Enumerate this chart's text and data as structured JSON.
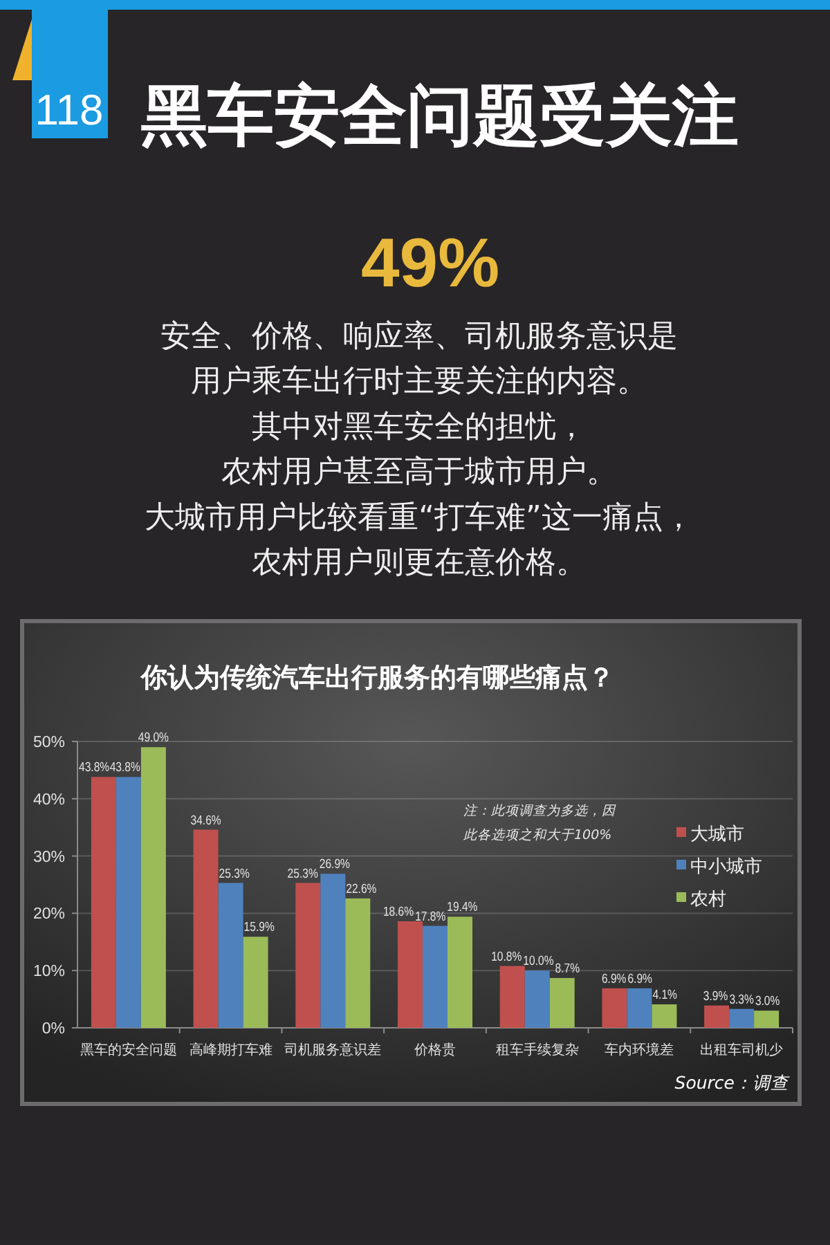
{
  "chart_data": {
    "type": "bar",
    "title": "你认为传统汽车出行服务的有哪些痛点？",
    "annotations": [
      "118",
      "黑车安全问题受关注",
      "49%",
      "安全、价格、响应率、司机服务意识是",
      "用户乘车出行时主要关注的内容。",
      "其中对黑车安全的担忧，",
      "农村用户甚至高于城市用户。",
      "大城市用户比较看重“打车难”这一痛点，",
      "农村用户则更在意价格。",
      "注：此项调查为多选，因此各选项之和大于100%",
      "Source：调查"
    ],
    "categories": [
      "黑车的安全问题",
      "高峰期打车难",
      "司机服务意识差",
      "价格贵",
      "租车手续复杂",
      "车内环境差",
      "出租车司机少"
    ],
    "series": [
      {
        "name": "大城市",
        "color": "#c0504d",
        "values": [
          43.8,
          34.6,
          25.3,
          18.6,
          10.8,
          6.9,
          3.9
        ],
        "value_labels": [
          "43.8%",
          "34.6%",
          "25.3%",
          "18.6%",
          "10.8%",
          "6.9%",
          "3.9%"
        ]
      },
      {
        "name": "中小城市",
        "color": "#4f81bd",
        "values": [
          43.8,
          25.3,
          26.9,
          17.8,
          10.0,
          6.9,
          3.3
        ],
        "value_labels": [
          "43.8%",
          "25.3%",
          "26.9%",
          "17.8%",
          "10.0%",
          "6.9%",
          "3.3%"
        ]
      },
      {
        "name": "农村",
        "color": "#9bbb59",
        "values": [
          49.0,
          15.9,
          22.6,
          19.4,
          8.7,
          4.1,
          3.0
        ],
        "value_labels": [
          "49.0%",
          "15.9%",
          "22.6%",
          "19.4%",
          "8.7%",
          "4.1%",
          "3.0%"
        ]
      }
    ],
    "ylim": [
      0,
      50
    ],
    "yticks": [
      {
        "value": 0,
        "label": "0%"
      },
      {
        "value": 10,
        "label": "10%"
      },
      {
        "value": 20,
        "label": "20%"
      },
      {
        "value": 30,
        "label": "30%"
      },
      {
        "value": 40,
        "label": "40%"
      },
      {
        "value": 50,
        "label": "50%"
      }
    ],
    "grid": "y",
    "legend": "right"
  }
}
